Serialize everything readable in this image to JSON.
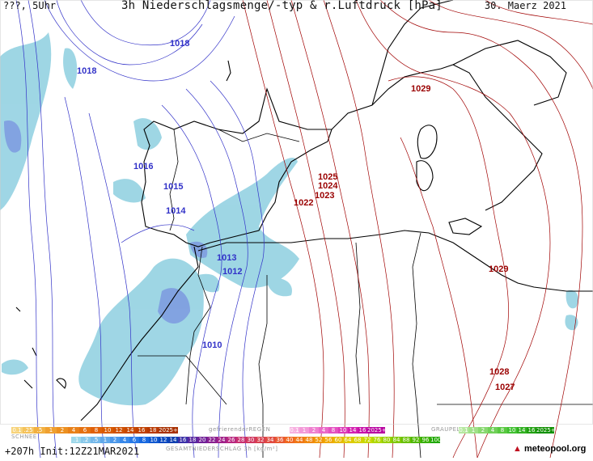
{
  "header": {
    "left": "???, 5Uhr",
    "title": "3h Niederschlagsmenge/-typ & r.Luftdruck [hPa]",
    "date": "30. Maerz 2021"
  },
  "map": {
    "isobar_labels_low": [
      "1018",
      "1018",
      "1016",
      "1015",
      "1014",
      "1013",
      "1012",
      "1010"
    ],
    "isobar_labels_high": [
      "1029",
      "1025",
      "1024",
      "1023",
      "1022",
      "1029",
      "1028",
      "1027"
    ],
    "colors": {
      "low_isobar": "#3232c8",
      "high_isobar": "#a00000",
      "precip": "#8ecfe0",
      "heavy_precip": "#6e8fe0",
      "coast": "#000000"
    }
  },
  "legend": {
    "snow_title": "SCHNEE",
    "snow_values": [
      "0.1",
      ".25",
      ".5",
      "1",
      "2",
      "4",
      "6",
      "8",
      "10",
      "12",
      "14",
      "16",
      "18",
      "2025+"
    ],
    "freezing_title": "gefrierenderREGEN",
    "freezing_values": [
      "0.1",
      "1",
      "2",
      "4",
      "8",
      "10",
      "14",
      "16",
      "2025+"
    ],
    "graupel_title": "GRAUPEL",
    "graupel_values": [
      "0.1",
      "1",
      "2",
      "4",
      "8",
      "10",
      "14",
      "16",
      "2025+"
    ],
    "total_title": "GESAMTNIEDERSCHLAG 3h [kg/m²]",
    "total_values": [
      ".1",
      ".2",
      ".5",
      "1",
      "2",
      "4",
      "6",
      "8",
      "10",
      "12",
      "14",
      "16",
      "18",
      "20",
      "22",
      "24",
      "26",
      "28",
      "30",
      "32",
      "34",
      "36",
      "40",
      "44",
      "48",
      "52",
      "56",
      "60",
      "64",
      "68",
      "72",
      "76",
      "80",
      "84",
      "88",
      "92",
      "96",
      "100"
    ]
  },
  "footer": {
    "init": "+207h Init:12Z21MAR2021",
    "logo": "meteopool.org"
  }
}
